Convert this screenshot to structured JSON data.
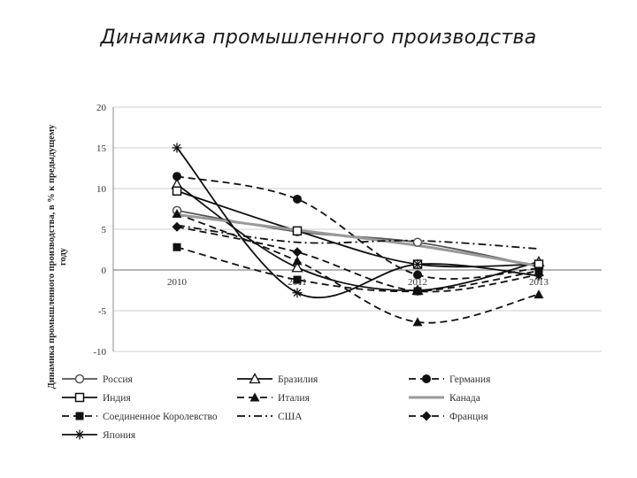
{
  "slide": {
    "title": "Динамика промышленного производства"
  },
  "chart_data": {
    "type": "line",
    "title": "",
    "xlabel": "",
    "ylabel": "Динамика промышленного производства, в % к предыдущему году",
    "ylim": [
      -10,
      20
    ],
    "yticks": [
      -10,
      -5,
      0,
      5,
      10,
      15,
      20
    ],
    "grid": true,
    "legend_position": "bottom",
    "categories": [
      "2010",
      "2011",
      "2012",
      "2013"
    ],
    "series": [
      {
        "name": "Россия",
        "values": [
          7.3,
          4.7,
          3.4,
          0.4
        ],
        "dash": "solid",
        "marker": "circle-open",
        "color": "#555555"
      },
      {
        "name": "Бразилия",
        "values": [
          10.5,
          0.3,
          -2.5,
          1.0
        ],
        "dash": "solid",
        "marker": "triangle-open",
        "color": "#111111"
      },
      {
        "name": "Германия",
        "values": [
          11.5,
          8.7,
          -0.6,
          0.2
        ],
        "dash": "dashed",
        "marker": "circle",
        "color": "#111111"
      },
      {
        "name": "Индия",
        "values": [
          9.7,
          4.8,
          0.7,
          0.7
        ],
        "dash": "solid",
        "marker": "square-open",
        "color": "#111111"
      },
      {
        "name": "Италия",
        "values": [
          6.9,
          1.1,
          -6.4,
          -3.0
        ],
        "dash": "dashed",
        "marker": "triangle",
        "color": "#111111"
      },
      {
        "name": "Канада",
        "values": [
          6.8,
          4.9,
          3.0,
          0.5
        ],
        "dash": "solid",
        "marker": "none",
        "color": "#999999"
      },
      {
        "name": "Соединенное Королевство",
        "values": [
          2.8,
          -1.2,
          -2.6,
          -0.1
        ],
        "dash": "dashed",
        "marker": "square",
        "color": "#111111"
      },
      {
        "name": "США",
        "values": [
          5.5,
          3.4,
          3.6,
          2.6
        ],
        "dash": "dashdot",
        "marker": "none",
        "color": "#111111"
      },
      {
        "name": "Франция",
        "values": [
          5.3,
          2.2,
          -2.6,
          -0.6
        ],
        "dash": "dashed",
        "marker": "diamond",
        "color": "#111111"
      },
      {
        "name": "Япония",
        "values": [
          15.0,
          -2.8,
          0.7,
          -0.7
        ],
        "dash": "solid",
        "marker": "star",
        "color": "#111111"
      }
    ]
  }
}
